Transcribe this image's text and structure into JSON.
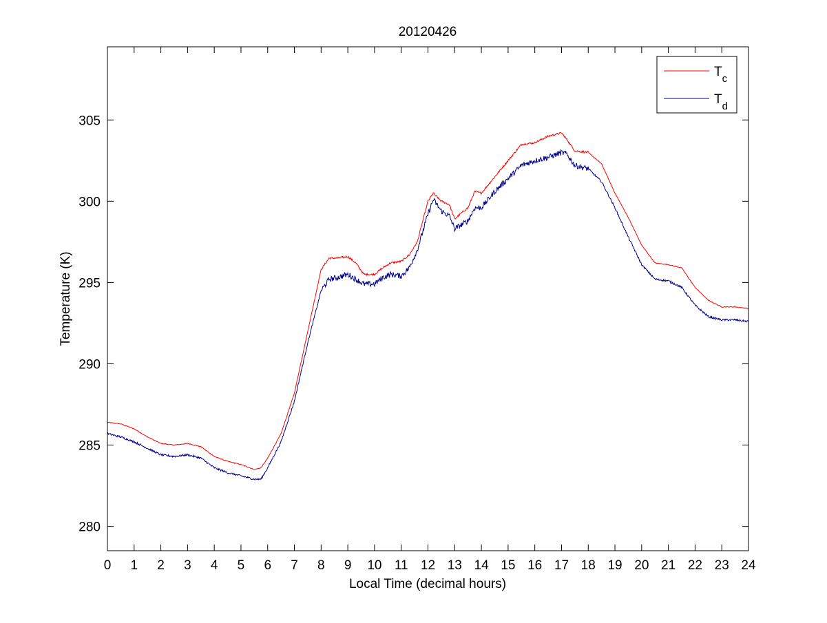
{
  "chart_data": {
    "type": "line",
    "title": "20120426",
    "xlabel": "Local Time (decimal hours)",
    "ylabel": "Temperature (K)",
    "xlim": [
      0,
      24
    ],
    "ylim": [
      278.5,
      309.5
    ],
    "xticks": [
      0,
      1,
      2,
      3,
      4,
      5,
      6,
      7,
      8,
      9,
      10,
      11,
      12,
      13,
      14,
      15,
      16,
      17,
      18,
      19,
      20,
      21,
      22,
      23,
      24
    ],
    "yticks": [
      280,
      285,
      290,
      295,
      300,
      305
    ],
    "grid": false,
    "legend_position": "top-right",
    "series": [
      {
        "legend_base": "T",
        "legend_sub": "c",
        "color": "#ff0000",
        "x": [
          0,
          0.5,
          1,
          1.5,
          2,
          2.5,
          3,
          3.5,
          4,
          4.5,
          5,
          5.5,
          5.75,
          6,
          6.5,
          7,
          7.5,
          8,
          8.3,
          8.6,
          9,
          9.3,
          9.6,
          10,
          10.3,
          10.6,
          11,
          11.3,
          11.6,
          12,
          12.2,
          12.5,
          12.8,
          13,
          13.2,
          13.5,
          13.75,
          14,
          14.5,
          15,
          15.5,
          16,
          16.5,
          17,
          17.2,
          17.5,
          18,
          18.5,
          19,
          19.5,
          20,
          20.5,
          21,
          21.5,
          22,
          22.5,
          23,
          23.5,
          24
        ],
        "y": [
          286.4,
          286.3,
          286.0,
          285.5,
          285.1,
          285.0,
          285.1,
          284.9,
          284.3,
          284.0,
          283.8,
          283.5,
          283.6,
          284.2,
          285.7,
          288.2,
          292.0,
          295.8,
          296.5,
          296.5,
          296.6,
          296.2,
          295.5,
          295.5,
          295.9,
          296.2,
          296.3,
          296.7,
          297.5,
          300.0,
          300.5,
          300.0,
          299.8,
          298.9,
          299.2,
          299.6,
          300.6,
          300.5,
          301.5,
          302.5,
          303.5,
          303.6,
          304.0,
          304.2,
          303.8,
          303.1,
          303.0,
          302.3,
          300.5,
          299.0,
          297.3,
          296.2,
          296.1,
          295.9,
          294.7,
          293.9,
          293.5,
          293.5,
          293.4
        ]
      },
      {
        "legend_base": "T",
        "legend_sub": "d",
        "color": "#00008b",
        "x": [
          0,
          0.5,
          1,
          1.5,
          2,
          2.5,
          3,
          3.5,
          4,
          4.5,
          5,
          5.5,
          5.75,
          6,
          6.5,
          7,
          7.5,
          8,
          8.3,
          8.6,
          9,
          9.3,
          9.6,
          10,
          10.3,
          10.6,
          11,
          11.3,
          11.6,
          12,
          12.2,
          12.5,
          12.8,
          13,
          13.2,
          13.5,
          13.75,
          14,
          14.5,
          15,
          15.5,
          16,
          16.5,
          17,
          17.2,
          17.5,
          18,
          18.5,
          19,
          19.5,
          20,
          20.5,
          21,
          21.5,
          22,
          22.5,
          23,
          23.5,
          24
        ],
        "y": [
          285.7,
          285.5,
          285.2,
          284.8,
          284.4,
          284.3,
          284.4,
          284.2,
          283.6,
          283.3,
          283.1,
          282.9,
          282.9,
          283.6,
          285.2,
          287.7,
          291.3,
          294.5,
          295.2,
          295.3,
          295.5,
          295.2,
          294.9,
          294.9,
          295.3,
          295.5,
          295.4,
          295.9,
          297.0,
          299.2,
          300.1,
          299.4,
          299.1,
          298.3,
          298.5,
          298.8,
          299.6,
          299.6,
          300.6,
          301.4,
          302.2,
          302.5,
          302.7,
          303.0,
          302.9,
          302.2,
          302.0,
          301.2,
          299.6,
          297.8,
          296.1,
          295.2,
          295.1,
          294.7,
          293.6,
          292.9,
          292.7,
          292.7,
          292.6
        ]
      }
    ]
  }
}
